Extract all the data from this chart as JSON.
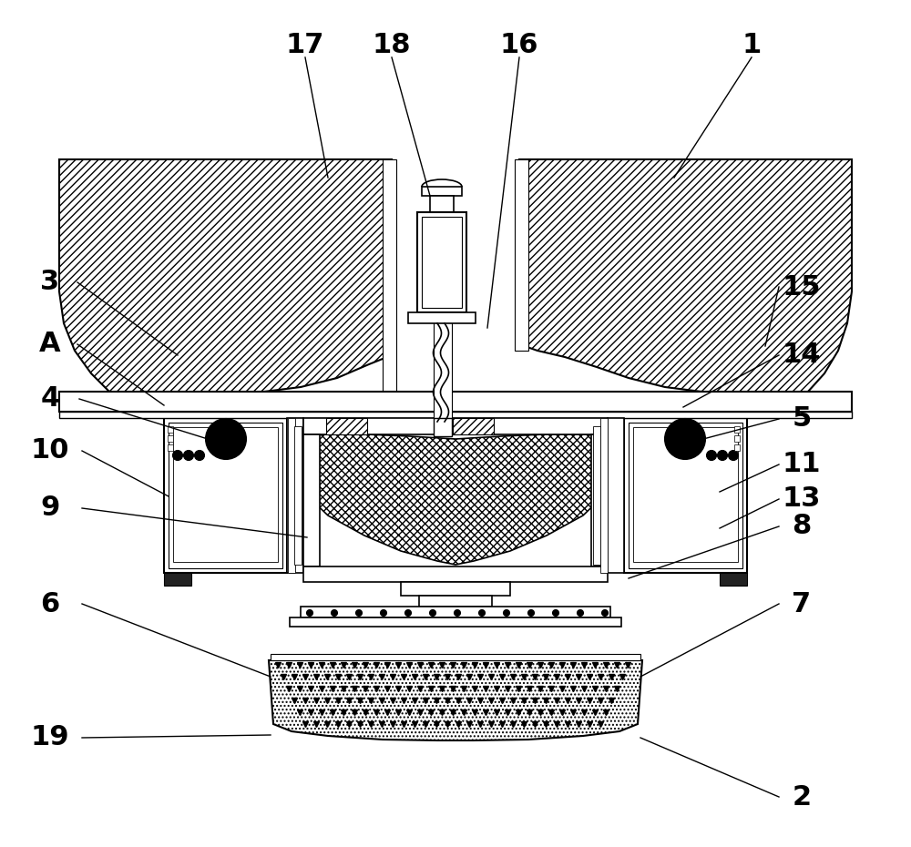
{
  "bg_color": "#ffffff",
  "lc": "#000000",
  "fig_width": 10.0,
  "fig_height": 9.3,
  "dpi": 100,
  "label_fontsize": 22
}
